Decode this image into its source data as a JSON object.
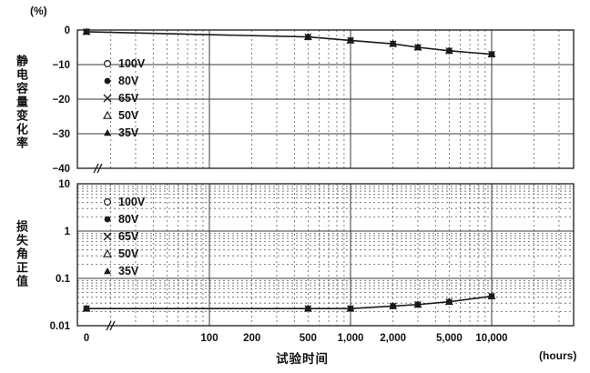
{
  "labels": {
    "y_top_unit": "(%)",
    "y_top_title": "静电容量变化率",
    "y_bottom_title": "损失角正值",
    "x_title": "试验时间",
    "x_unit": "(hours)"
  },
  "legend": {
    "items": [
      {
        "symbol": "circle-open",
        "label": "100V"
      },
      {
        "symbol": "circle-filled",
        "label": "80V"
      },
      {
        "symbol": "x",
        "label": "65V"
      },
      {
        "symbol": "triangle-open",
        "label": "50V"
      },
      {
        "symbol": "triangle-filled",
        "label": "35V"
      }
    ]
  },
  "x_axis": {
    "label": "试验时间",
    "unit": "(hours)",
    "scale": "log-with-zero-break",
    "ticks": [
      {
        "v": 0,
        "label": "0"
      },
      {
        "v": 100,
        "label": "100"
      },
      {
        "v": 200,
        "label": "200"
      },
      {
        "v": 500,
        "label": "500"
      },
      {
        "v": 1000,
        "label": "1,000"
      },
      {
        "v": 2000,
        "label": "2,000"
      },
      {
        "v": 5000,
        "label": "5,000"
      },
      {
        "v": 10000,
        "label": "10,000"
      }
    ]
  },
  "chart_data": [
    {
      "type": "line",
      "ylabel": "静电容量变化率",
      "y_unit": "(%)",
      "yscale": "linear",
      "ylim": [
        -40,
        0
      ],
      "yticks": [
        {
          "v": 0,
          "label": "0"
        },
        {
          "v": -10,
          "label": "−10"
        },
        {
          "v": -20,
          "label": "−20"
        },
        {
          "v": -30,
          "label": "−30"
        },
        {
          "v": -40,
          "label": "−40"
        }
      ],
      "x_hours": [
        0,
        500,
        1000,
        2000,
        3000,
        5000,
        10000
      ],
      "series": [
        {
          "name": "100V",
          "marker": "circle-open",
          "values": [
            -0.5,
            -2,
            -3,
            -4,
            -5,
            -6,
            -7
          ]
        },
        {
          "name": "80V",
          "marker": "circle-filled",
          "values": [
            -0.5,
            -2,
            -3,
            -4,
            -5,
            -6,
            -7
          ]
        },
        {
          "name": "65V",
          "marker": "x",
          "values": [
            -0.5,
            -2,
            -3,
            -4,
            -5,
            -6,
            -7
          ]
        },
        {
          "name": "50V",
          "marker": "triangle-open",
          "values": [
            -0.5,
            -2,
            -3,
            -4,
            -5,
            -6,
            -7
          ]
        },
        {
          "name": "35V",
          "marker": "triangle-filled",
          "values": [
            -0.5,
            -2,
            -3,
            -4,
            -5,
            -6,
            -7
          ]
        }
      ]
    },
    {
      "type": "line",
      "ylabel": "损失角正值",
      "yscale": "log",
      "ylim": [
        0.01,
        10
      ],
      "yticks": [
        {
          "v": 10,
          "label": "10"
        },
        {
          "v": 1,
          "label": "1"
        },
        {
          "v": 0.1,
          "label": "0.1"
        },
        {
          "v": 0.01,
          "label": "0.01"
        }
      ],
      "x_hours": [
        0,
        500,
        1000,
        2000,
        3000,
        5000,
        10000
      ],
      "series": [
        {
          "name": "100V",
          "marker": "circle-open",
          "values": [
            0.023,
            0.023,
            0.023,
            0.026,
            0.028,
            0.032,
            0.042
          ]
        },
        {
          "name": "80V",
          "marker": "circle-filled",
          "values": [
            0.023,
            0.023,
            0.023,
            0.026,
            0.028,
            0.032,
            0.042
          ]
        },
        {
          "name": "65V",
          "marker": "x",
          "values": [
            0.023,
            0.023,
            0.023,
            0.026,
            0.028,
            0.032,
            0.042
          ]
        },
        {
          "name": "50V",
          "marker": "triangle-open",
          "values": [
            0.023,
            0.023,
            0.023,
            0.026,
            0.028,
            0.032,
            0.042
          ]
        },
        {
          "name": "35V",
          "marker": "triangle-filled",
          "values": [
            0.023,
            0.023,
            0.023,
            0.026,
            0.028,
            0.032,
            0.042
          ]
        }
      ]
    }
  ],
  "colors": {
    "line": "#1a1a1a",
    "grid_major": "#3a3a3a",
    "grid_minor": "#606060",
    "frame": "#1a1a1a",
    "text": "#111111",
    "background": "#ffffff"
  }
}
